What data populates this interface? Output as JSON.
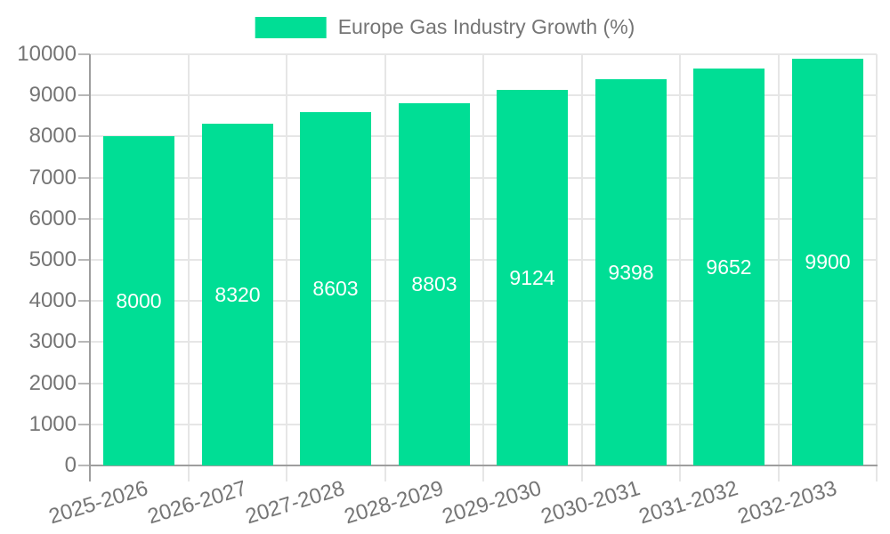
{
  "chart_data": {
    "type": "bar",
    "title": "Europe Gas Industry Growth (%)",
    "legend_position": "top-center",
    "categories": [
      "2025-2026",
      "2026-2027",
      "2027-2028",
      "2028-2029",
      "2029-2030",
      "2030-2031",
      "2031-2032",
      "2032-2033"
    ],
    "series": [
      {
        "name": "Europe Gas Industry Growth (%)",
        "values": [
          8000,
          8320,
          8603,
          8803,
          9124,
          9398,
          9652,
          9900
        ]
      }
    ],
    "value_labels": [
      "8000",
      "8320",
      "8603",
      "8803",
      "9124",
      "9398",
      "9652",
      "9900"
    ],
    "xlabel": "",
    "ylabel": "",
    "ylim": [
      0,
      10000
    ],
    "ytick_step": 1000,
    "ytick_labels": [
      "0",
      "1000",
      "2000",
      "3000",
      "4000",
      "5000",
      "6000",
      "7000",
      "8000",
      "9000",
      "10000"
    ],
    "grid": true,
    "x_label_rotation_deg": -17,
    "colors": {
      "bar": "#00DE95",
      "value_label": "#ffffff",
      "axis_label": "#757575",
      "legend_text": "#757575",
      "gridline": "#e6e6e6",
      "axis_line": "#9e9e9e",
      "tick": "#b8b8b8",
      "background": "#ffffff"
    }
  }
}
